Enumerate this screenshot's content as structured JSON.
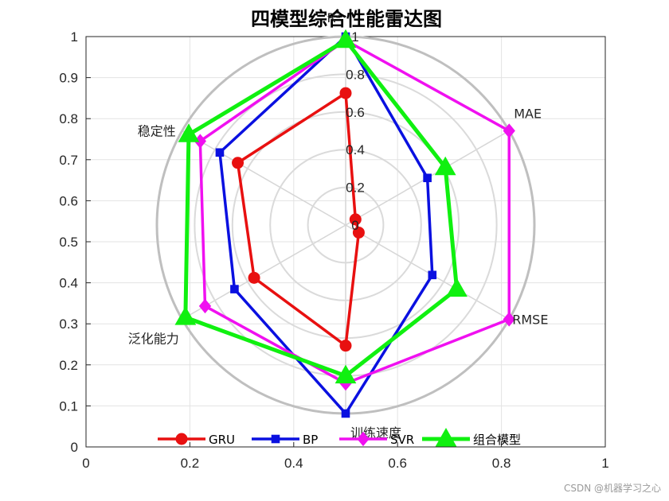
{
  "title": "四模型综合性能雷达图",
  "watermark": "CSDN @机器学习之心",
  "chart_data": {
    "type": "radar",
    "title": "四模型综合性能雷达图",
    "axes": [
      "R²",
      "MAE",
      "RMSE",
      "训练速度",
      "泛化能力",
      "稳定性"
    ],
    "radial_ticks": [
      "0",
      "0.2",
      "0.4",
      "0.6",
      "0.8",
      "1"
    ],
    "radial_range": [
      0,
      1
    ],
    "cartesian_x_ticks": [
      "0",
      "0.2",
      "0.4",
      "0.6",
      "0.8",
      "1"
    ],
    "cartesian_y_ticks": [
      "0",
      "0.1",
      "0.2",
      "0.3",
      "0.4",
      "0.5",
      "0.6",
      "0.7",
      "0.8",
      "0.9",
      "1"
    ],
    "grid": true,
    "legend_position": "bottom",
    "series": [
      {
        "name": "GRU",
        "color": "#e81010",
        "marker": "circle",
        "values": [
          0.7,
          0.06,
          0.08,
          0.64,
          0.56,
          0.66
        ]
      },
      {
        "name": "BP",
        "color": "#0a10e0",
        "marker": "square",
        "values": [
          1.0,
          0.5,
          0.53,
          1.0,
          0.68,
          0.77
        ]
      },
      {
        "name": "SVR",
        "color": "#f010f0",
        "marker": "diamond",
        "values": [
          0.98,
          1.0,
          1.0,
          0.84,
          0.86,
          0.89
        ]
      },
      {
        "name": "组合模型",
        "color": "#10f010",
        "marker": "triangle",
        "values": [
          0.98,
          0.61,
          0.68,
          0.8,
          0.98,
          0.96
        ]
      }
    ]
  }
}
